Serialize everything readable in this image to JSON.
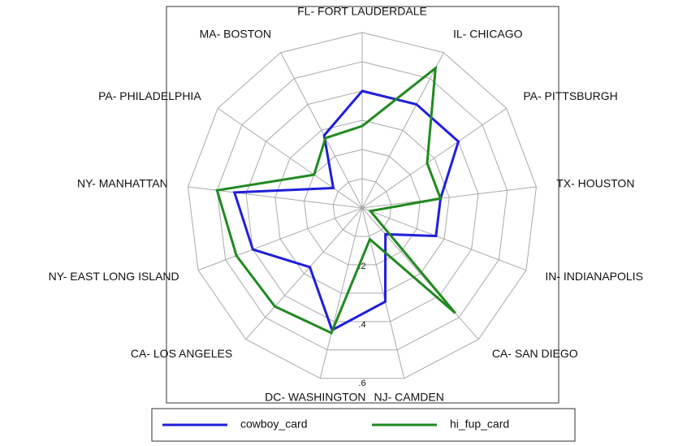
{
  "chart_data": {
    "type": "radar",
    "categories": [
      "FL- FORT LAUDERDALE",
      "IL- CHICAGO",
      "PA- PITTSBURGH",
      "TX- HOUSTON",
      "IN- INDIANAPOLIS",
      "CA- SAN DIEGO",
      "NJ- CAMDEN",
      "DC- WASHINGTON",
      "CA- LOS ANGELES",
      "NY- EAST LONG ISLAND",
      "NY- MANHATTAN",
      "PA- PHILADELPHIA",
      "MA- BOSTON"
    ],
    "series": [
      {
        "name": "cowboy_card",
        "color": "#1f1fdc",
        "values": [
          0.4,
          0.4,
          0.4,
          0.27,
          0.27,
          0.12,
          0.33,
          0.43,
          0.27,
          0.4,
          0.44,
          0.12,
          0.28
        ]
      },
      {
        "name": "hi_fup_card",
        "color": "#1f8a1f",
        "values": [
          0.28,
          0.54,
          0.27,
          0.27,
          0.03,
          0.48,
          0.11,
          0.44,
          0.45,
          0.46,
          0.5,
          0.2,
          0.27
        ]
      }
    ],
    "rlim": [
      0,
      0.6
    ],
    "rticks": [
      {
        "value": 0.1,
        "label": null
      },
      {
        "value": 0.2,
        "label": ".2"
      },
      {
        "value": 0.3,
        "label": null
      },
      {
        "value": 0.4,
        "label": ".4"
      },
      {
        "value": 0.5,
        "label": null
      },
      {
        "value": 0.6,
        "label": ".6"
      }
    ],
    "grid": true
  }
}
